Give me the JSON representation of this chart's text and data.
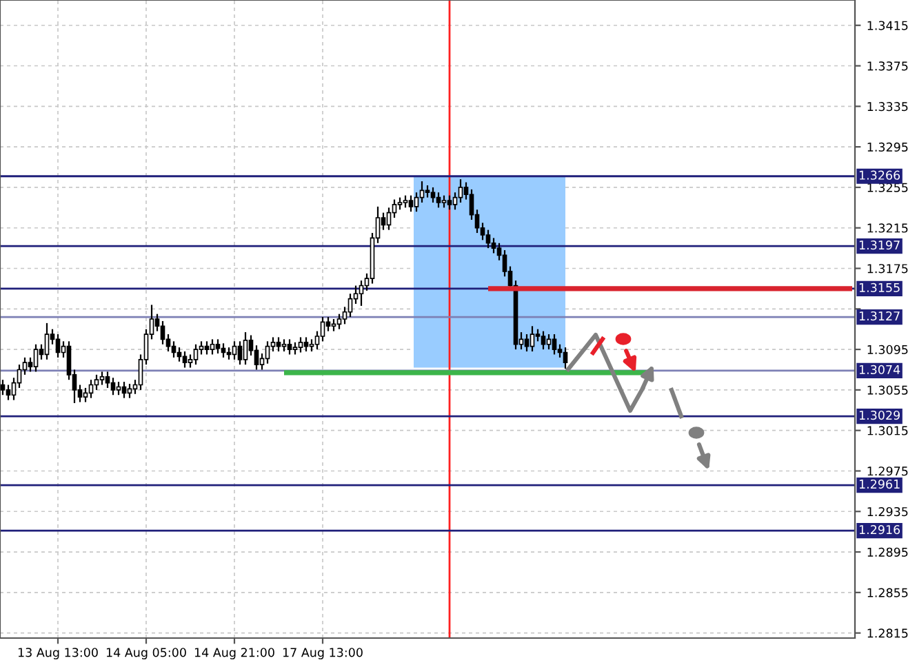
{
  "chart_data": {
    "type": "candlestick",
    "categories": [
      null,
      null,
      null,
      null,
      null,
      null,
      null,
      null,
      null,
      null,
      "13 Aug 13:00",
      null,
      null,
      null,
      null,
      null,
      null,
      null,
      null,
      null,
      null,
      null,
      null,
      null,
      null,
      null,
      "14 Aug 05:00",
      null,
      null,
      null,
      null,
      null,
      null,
      null,
      null,
      null,
      null,
      null,
      null,
      null,
      null,
      null,
      "14 Aug 21:00",
      null,
      null,
      null,
      null,
      null,
      null,
      null,
      null,
      null,
      null,
      null,
      null,
      null,
      null,
      null,
      "17 Aug 13:00",
      null,
      null,
      null,
      null,
      null,
      null,
      null,
      null,
      null,
      null,
      null,
      null,
      null,
      null,
      null,
      null,
      null,
      null,
      null,
      null,
      null,
      null,
      null,
      null,
      null,
      null,
      null,
      null,
      null,
      null,
      null,
      null,
      null,
      null,
      null,
      null,
      null,
      null,
      null,
      null,
      null,
      null,
      null,
      null,
      null,
      null,
      null,
      null,
      null,
      null,
      null,
      null,
      null,
      null,
      null,
      null,
      null,
      null,
      null,
      null,
      null,
      null,
      null,
      null,
      null,
      null,
      null,
      null,
      null,
      null,
      null,
      null,
      null,
      null,
      null,
      null,
      null,
      null,
      null,
      null,
      null,
      null,
      null,
      null,
      null,
      null,
      null,
      null,
      null,
      null,
      null,
      null,
      null,
      null,
      null,
      null
    ],
    "ohlc": [
      [
        1.306,
        1.3065,
        1.305,
        1.3055
      ],
      [
        1.3055,
        1.306,
        1.3045,
        1.305
      ],
      [
        1.305,
        1.3067,
        1.3045,
        1.3062
      ],
      [
        1.3062,
        1.308,
        1.3057,
        1.3075
      ],
      [
        1.3075,
        1.3087,
        1.307,
        1.3082
      ],
      [
        1.3082,
        1.3087,
        1.3073,
        1.3078
      ],
      [
        1.3078,
        1.31,
        1.3073,
        1.3095
      ],
      [
        1.3095,
        1.31,
        1.3085,
        1.309
      ],
      [
        1.309,
        1.3121,
        1.3085,
        1.311
      ],
      [
        1.311,
        1.3115,
        1.31,
        1.3105
      ],
      [
        1.3105,
        1.311,
        1.3087,
        1.3092
      ],
      [
        1.3092,
        1.3103,
        1.3087,
        1.3098
      ],
      [
        1.3098,
        1.3103,
        1.3065,
        1.307
      ],
      [
        1.307,
        1.3075,
        1.3042,
        1.3055
      ],
      [
        1.3055,
        1.306,
        1.3043,
        1.3048
      ],
      [
        1.3048,
        1.3057,
        1.3043,
        1.3052
      ],
      [
        1.3052,
        1.3065,
        1.3047,
        1.306
      ],
      [
        1.306,
        1.307,
        1.3055,
        1.3065
      ],
      [
        1.3065,
        1.3073,
        1.306,
        1.3068
      ],
      [
        1.3068,
        1.3073,
        1.3057,
        1.3062
      ],
      [
        1.3062,
        1.3067,
        1.305,
        1.3055
      ],
      [
        1.3055,
        1.3063,
        1.305,
        1.3058
      ],
      [
        1.3058,
        1.3063,
        1.3047,
        1.3052
      ],
      [
        1.3052,
        1.3061,
        1.3047,
        1.3056
      ],
      [
        1.3056,
        1.3065,
        1.3051,
        1.306
      ],
      [
        1.306,
        1.309,
        1.3055,
        1.3085
      ],
      [
        1.3085,
        1.3115,
        1.308,
        1.311
      ],
      [
        1.311,
        1.3139,
        1.3105,
        1.3125
      ],
      [
        1.3125,
        1.313,
        1.3113,
        1.3118
      ],
      [
        1.3118,
        1.3123,
        1.31,
        1.3105
      ],
      [
        1.3105,
        1.311,
        1.3093,
        1.3098
      ],
      [
        1.3098,
        1.3103,
        1.3087,
        1.3092
      ],
      [
        1.3092,
        1.3097,
        1.3083,
        1.3088
      ],
      [
        1.3088,
        1.3093,
        1.3077,
        1.3082
      ],
      [
        1.3082,
        1.309,
        1.3077,
        1.3085
      ],
      [
        1.3085,
        1.31,
        1.308,
        1.3095
      ],
      [
        1.3095,
        1.3103,
        1.309,
        1.3098
      ],
      [
        1.3098,
        1.3103,
        1.309,
        1.3095
      ],
      [
        1.3095,
        1.3105,
        1.309,
        1.31
      ],
      [
        1.31,
        1.3105,
        1.3091,
        1.3096
      ],
      [
        1.3096,
        1.3101,
        1.3087,
        1.3092
      ],
      [
        1.3092,
        1.3097,
        1.3085,
        1.309
      ],
      [
        1.309,
        1.3103,
        1.3085,
        1.3098
      ],
      [
        1.3098,
        1.3103,
        1.308,
        1.3085
      ],
      [
        1.3085,
        1.3112,
        1.308,
        1.3104
      ],
      [
        1.3104,
        1.3109,
        1.3089,
        1.3094
      ],
      [
        1.3094,
        1.3099,
        1.3075,
        1.308
      ],
      [
        1.308,
        1.3091,
        1.3075,
        1.3086
      ],
      [
        1.3086,
        1.3103,
        1.3081,
        1.3098
      ],
      [
        1.3098,
        1.3107,
        1.3093,
        1.3102
      ],
      [
        1.3102,
        1.3107,
        1.3093,
        1.3098
      ],
      [
        1.3098,
        1.3105,
        1.3093,
        1.31
      ],
      [
        1.31,
        1.3105,
        1.309,
        1.3095
      ],
      [
        1.3095,
        1.3102,
        1.309,
        1.3097
      ],
      [
        1.3097,
        1.3107,
        1.3092,
        1.3102
      ],
      [
        1.3102,
        1.3107,
        1.3093,
        1.3098
      ],
      [
        1.3098,
        1.3105,
        1.3093,
        1.31
      ],
      [
        1.31,
        1.3113,
        1.3095,
        1.3108
      ],
      [
        1.3108,
        1.3127,
        1.3103,
        1.3122
      ],
      [
        1.3122,
        1.3127,
        1.3113,
        1.3118
      ],
      [
        1.3118,
        1.3125,
        1.3113,
        1.312
      ],
      [
        1.312,
        1.313,
        1.3115,
        1.3125
      ],
      [
        1.3125,
        1.3137,
        1.312,
        1.3132
      ],
      [
        1.3132,
        1.315,
        1.3127,
        1.3145
      ],
      [
        1.3145,
        1.3158,
        1.314,
        1.315
      ],
      [
        1.315,
        1.3163,
        1.3138,
        1.3158
      ],
      [
        1.3158,
        1.317,
        1.3153,
        1.3165
      ],
      [
        1.3165,
        1.321,
        1.316,
        1.3205
      ],
      [
        1.3205,
        1.3236,
        1.32,
        1.3225
      ],
      [
        1.3225,
        1.323,
        1.3213,
        1.3218
      ],
      [
        1.3218,
        1.3235,
        1.3213,
        1.323
      ],
      [
        1.323,
        1.3243,
        1.3225,
        1.3238
      ],
      [
        1.3238,
        1.3245,
        1.3233,
        1.324
      ],
      [
        1.324,
        1.3247,
        1.3235,
        1.3242
      ],
      [
        1.3242,
        1.3247,
        1.3231,
        1.3236
      ],
      [
        1.3236,
        1.325,
        1.3231,
        1.3245
      ],
      [
        1.3245,
        1.3261,
        1.324,
        1.3252
      ],
      [
        1.3252,
        1.3257,
        1.3245,
        1.325
      ],
      [
        1.325,
        1.3255,
        1.324,
        1.3245
      ],
      [
        1.3245,
        1.325,
        1.3235,
        1.324
      ],
      [
        1.324,
        1.3247,
        1.3235,
        1.3242
      ],
      [
        1.3242,
        1.3247,
        1.3233,
        1.3238
      ],
      [
        1.3238,
        1.325,
        1.3233,
        1.3245
      ],
      [
        1.3245,
        1.3263,
        1.324,
        1.3255
      ],
      [
        1.3255,
        1.326,
        1.3243,
        1.3248
      ],
      [
        1.3248,
        1.3253,
        1.3223,
        1.3228
      ],
      [
        1.3228,
        1.3233,
        1.321,
        1.3215
      ],
      [
        1.3215,
        1.322,
        1.3203,
        1.3208
      ],
      [
        1.3208,
        1.3213,
        1.3195,
        1.32
      ],
      [
        1.32,
        1.3205,
        1.319,
        1.3195
      ],
      [
        1.3195,
        1.32,
        1.3183,
        1.3188
      ],
      [
        1.3188,
        1.3193,
        1.3167,
        1.3172
      ],
      [
        1.3172,
        1.3177,
        1.3153,
        1.3158
      ],
      [
        1.3158,
        1.3163,
        1.3095,
        1.31
      ],
      [
        1.31,
        1.3112,
        1.3095,
        1.3105
      ],
      [
        1.3105,
        1.311,
        1.3093,
        1.3098
      ],
      [
        1.3098,
        1.3118,
        1.3093,
        1.311
      ],
      [
        1.311,
        1.3115,
        1.3103,
        1.3108
      ],
      [
        1.3108,
        1.3113,
        1.3095,
        1.31
      ],
      [
        1.31,
        1.311,
        1.3095,
        1.3105
      ],
      [
        1.3105,
        1.311,
        1.309,
        1.3095
      ],
      [
        1.3095,
        1.31,
        1.3087,
        1.3092
      ],
      [
        1.3092,
        1.3097,
        1.3076,
        1.3082
      ],
      null,
      null,
      null,
      null,
      null,
      null,
      null,
      null,
      null,
      null,
      null,
      null,
      null,
      null,
      null,
      null,
      null,
      null,
      null,
      null,
      null,
      null,
      null,
      null,
      null,
      null,
      null,
      null,
      null,
      null,
      null,
      null,
      null,
      null,
      null,
      null,
      null,
      null,
      null,
      null,
      null,
      null,
      null,
      null,
      null,
      null,
      null,
      null,
      null,
      null,
      null,
      null
    ],
    "series": [
      {
        "type": "line",
        "color": "#d9232e",
        "values": [
          null,
          null,
          null,
          null,
          null,
          null,
          null,
          null,
          null,
          null,
          null,
          null,
          null,
          null,
          null,
          null,
          null,
          null,
          null,
          null,
          null,
          null,
          null,
          null,
          null,
          null,
          null,
          null,
          null,
          null,
          null,
          null,
          null,
          null,
          null,
          null,
          null,
          null,
          null,
          null,
          null,
          null,
          null,
          null,
          null,
          null,
          null,
          null,
          null,
          null,
          null,
          null,
          null,
          null,
          null,
          null,
          null,
          null,
          null,
          null,
          null,
          null,
          null,
          null,
          null,
          null,
          null,
          null,
          null,
          null,
          null,
          null,
          null,
          null,
          null,
          null,
          null,
          null,
          null,
          null,
          null,
          null,
          null,
          null,
          null,
          null,
          null,
          null,
          1.3155,
          1.3155,
          1.3155,
          1.3155,
          1.3155,
          1.3155,
          1.3155,
          1.3155,
          1.3155,
          1.3155,
          1.3155,
          1.3155,
          1.3155,
          1.3155,
          1.3155,
          1.3155,
          1.3155,
          1.3155,
          1.3155,
          1.3155,
          1.3155,
          1.3155,
          1.3155,
          1.3155,
          1.3155,
          1.3155,
          1.3155,
          1.3155,
          1.3155,
          1.3155,
          1.3155,
          1.3155,
          1.3155,
          1.3155,
          1.3155,
          1.3155,
          1.3155,
          1.3155,
          1.3155,
          1.3155,
          1.3155,
          1.3155,
          1.3155,
          1.3155,
          1.3155,
          1.3155,
          1.3155,
          1.3155,
          1.3155,
          1.3155,
          1.3155,
          1.3155,
          1.3155,
          1.3155,
          1.3155,
          1.3155,
          1.3155,
          1.3155,
          1.3155,
          1.3155,
          1.3155,
          1.3155,
          1.3155,
          1.3155,
          1.3155,
          1.3155,
          1.3155
        ]
      },
      {
        "type": "line",
        "color": "#3cb54a",
        "values": [
          null,
          null,
          null,
          null,
          null,
          null,
          null,
          null,
          null,
          null,
          null,
          null,
          null,
          null,
          null,
          null,
          null,
          null,
          null,
          null,
          null,
          null,
          null,
          null,
          null,
          null,
          null,
          null,
          null,
          null,
          null,
          null,
          null,
          null,
          null,
          null,
          null,
          null,
          null,
          null,
          null,
          null,
          null,
          null,
          null,
          null,
          null,
          null,
          null,
          null,
          null,
          1.3072,
          1.3072,
          1.3072,
          1.3072,
          1.3072,
          1.3072,
          1.3072,
          1.3072,
          1.3072,
          1.3072,
          1.3072,
          1.3072,
          1.3072,
          1.3072,
          1.3072,
          1.3072,
          1.3072,
          1.3072,
          1.3072,
          1.3072,
          1.3072,
          1.3072,
          1.3072,
          1.3072,
          1.3072,
          1.3072,
          1.3072,
          1.3072,
          1.3072,
          1.3072,
          1.3072,
          1.3072,
          1.3072,
          1.3072,
          1.3072,
          1.3072,
          1.3072,
          1.3072,
          1.3072,
          1.3072,
          1.3072,
          1.3072,
          1.3072,
          1.3072,
          1.3072,
          1.3072,
          1.3072,
          1.3072,
          1.3072,
          1.3072,
          1.3072,
          1.3072,
          1.3072,
          1.3072,
          1.3072,
          1.3072,
          1.3072,
          1.3072,
          1.3072,
          1.3072,
          1.3072,
          1.3072,
          1.3072,
          1.3072,
          1.3072,
          1.3072,
          1.3072,
          null,
          null,
          null,
          null,
          null,
          null,
          null,
          null,
          null,
          null,
          null,
          null,
          null,
          null,
          null,
          null,
          null,
          null,
          null,
          null,
          null,
          null,
          null,
          null,
          null,
          null,
          null,
          null,
          null,
          null,
          null,
          null,
          null,
          null,
          null,
          null,
          null
        ]
      }
    ],
    "ref_lines": [
      {
        "axis": "y",
        "value": 1.3266,
        "label": "1.3266",
        "color": "#1f1f7a"
      },
      {
        "axis": "y",
        "value": 1.3197,
        "label": "1.3197",
        "color": "#1f1f7a"
      },
      {
        "axis": "y",
        "value": 1.3155,
        "label": "1.3155",
        "color": "#1f1f7a"
      },
      {
        "axis": "y",
        "value": 1.3127,
        "label": "1.3127",
        "color": "#7d80b5"
      },
      {
        "axis": "y",
        "value": 1.3074,
        "label": "1.3074",
        "color": "#7d80b5"
      },
      {
        "axis": "y",
        "value": 1.3029,
        "label": "1.3029",
        "color": "#1f1f7a"
      },
      {
        "axis": "y",
        "value": 1.2961,
        "label": "1.2961",
        "color": "#1f1f7a"
      },
      {
        "axis": "y",
        "value": 1.2916,
        "label": "1.2916",
        "color": "#1f1f7a"
      }
    ],
    "ylim": [
      1.281,
      1.344
    ],
    "yticks": [
      1.2815,
      1.2855,
      1.2895,
      1.2935,
      1.2975,
      1.3015,
      1.3055,
      1.3095,
      {
        "value": 1.3135,
        "label": null
      },
      1.3175,
      1.3215,
      1.3255,
      1.3295,
      1.3335,
      1.3375,
      1.3415
    ],
    "grid": true
  }
}
